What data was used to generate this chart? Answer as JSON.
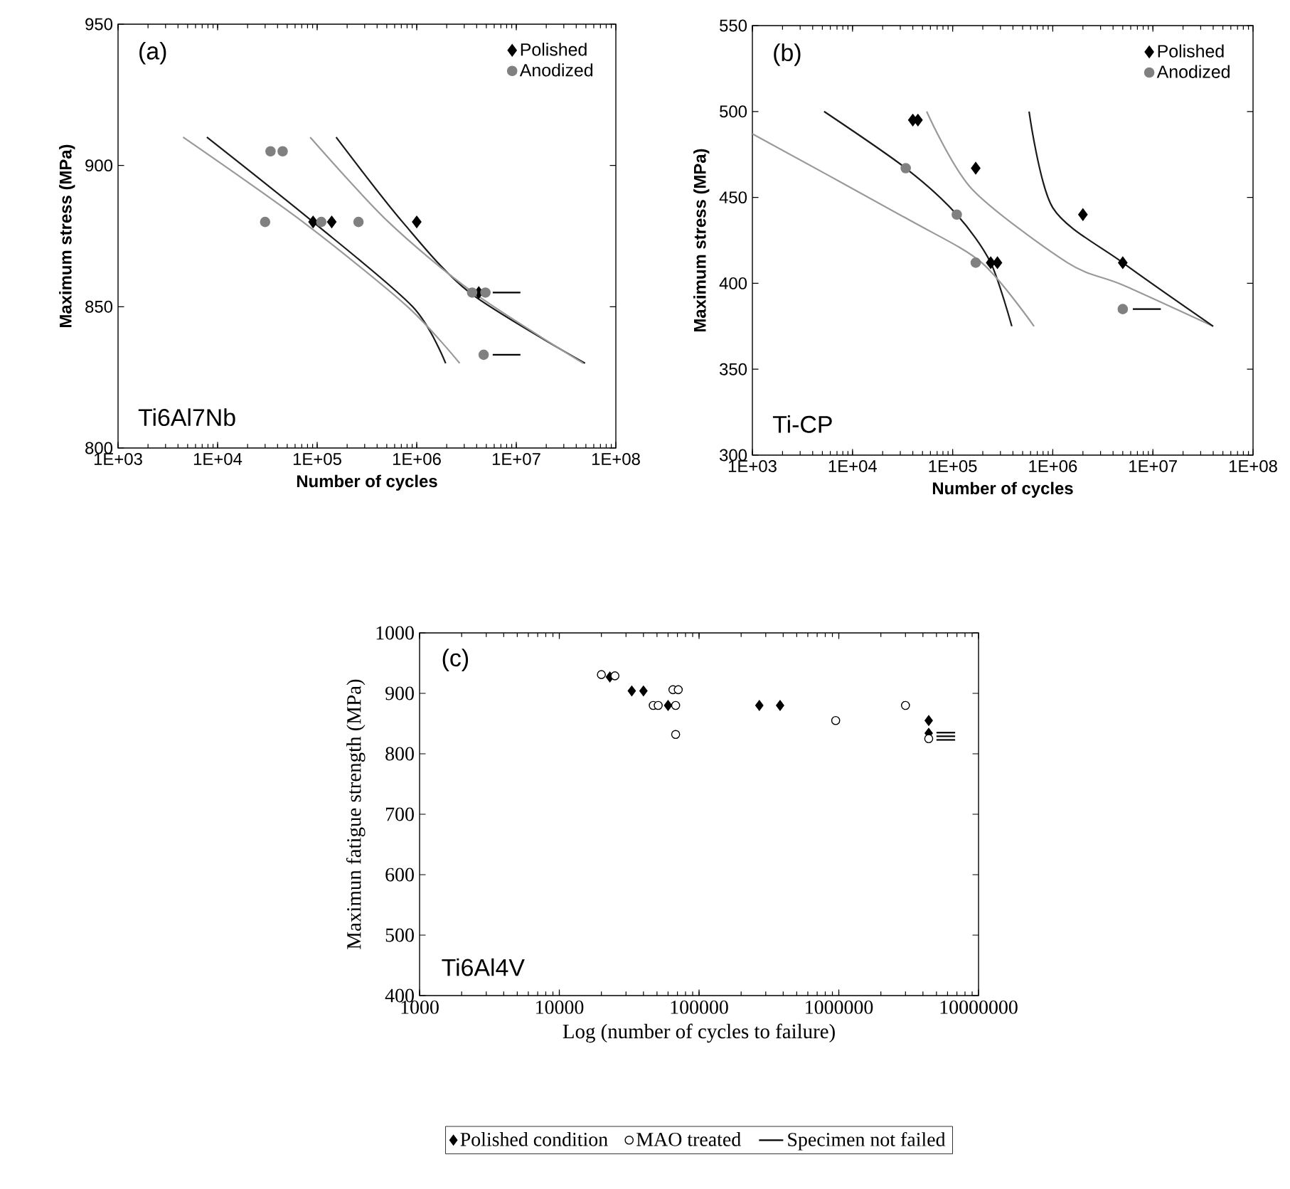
{
  "chart_data": [
    {
      "type": "scatter",
      "xlabel": "Number of cycles",
      "ylabel": "Maximum stress (MPa)",
      "annotations": [
        "(a)",
        "Ti6Al7Nb"
      ],
      "log": "x",
      "legend": "top right",
      "grid": false,
      "xlim": [
        1000,
        100000000
      ],
      "xticks": [
        {
          "value": 1000,
          "label": "1E+03"
        },
        {
          "value": 10000,
          "label": "1E+04"
        },
        {
          "value": 100000,
          "label": "1E+05"
        },
        {
          "value": 1000000,
          "label": "1E+06"
        },
        {
          "value": 10000000,
          "label": "1E+07"
        },
        {
          "value": 100000000,
          "label": "1E+08"
        }
      ],
      "ylim": [
        800,
        950
      ],
      "yticks": [
        800,
        850,
        900,
        950
      ],
      "series": [
        {
          "name": "Polished",
          "marker": "diamond",
          "color": "#000000",
          "x": [
            91000,
            140000,
            1000000,
            4200000
          ],
          "values": [
            880,
            880,
            880,
            855
          ]
        },
        {
          "name": "Anodized",
          "marker": "circle",
          "color": "#808080",
          "x": [
            30000,
            34000,
            45000,
            110000,
            260000,
            3600000,
            4900000,
            4700000
          ],
          "values": [
            880,
            905,
            905,
            880,
            880,
            855,
            855,
            833
          ]
        },
        {
          "type": "line",
          "color": "#000000",
          "x": [
            5800000,
            11000000
          ],
          "values": [
            855,
            855
          ]
        },
        {
          "type": "line",
          "color": "#000000",
          "x": [
            5800000,
            11000000
          ],
          "values": [
            833,
            833
          ]
        },
        {
          "type": "line",
          "color": "#1a1a1a",
          "x": [
            7800,
            91000,
            910000,
            1950000
          ],
          "values": [
            910,
            880,
            850,
            830
          ]
        },
        {
          "type": "line",
          "color": "#999999",
          "x": [
            4500,
            72000,
            810000,
            2700000
          ],
          "values": [
            910,
            880,
            850,
            830
          ]
        },
        {
          "type": "line",
          "color": "#1a1a1a",
          "x": [
            155000,
            720000,
            3400000,
            49000000
          ],
          "values": [
            910,
            880,
            855,
            830
          ]
        },
        {
          "type": "line",
          "color": "#999999",
          "x": [
            85000,
            520000,
            3700000,
            47000000
          ],
          "values": [
            910,
            880,
            855,
            830
          ]
        }
      ]
    },
    {
      "type": "scatter",
      "xlabel": "Number of cycles",
      "ylabel": "Maximum stress (MPa)",
      "annotations": [
        "(b)",
        "Ti-CP"
      ],
      "log": "x",
      "legend": "top right",
      "grid": false,
      "xlim": [
        1000,
        100000000
      ],
      "xticks": [
        {
          "value": 1000,
          "label": "1E+03"
        },
        {
          "value": 10000,
          "label": "1E+04"
        },
        {
          "value": 100000,
          "label": "1E+05"
        },
        {
          "value": 1000000,
          "label": "1E+06"
        },
        {
          "value": 10000000,
          "label": "1E+07"
        },
        {
          "value": 100000000,
          "label": "1E+08"
        }
      ],
      "ylim": [
        300,
        550
      ],
      "yticks": [
        300,
        350,
        400,
        450,
        500,
        550
      ],
      "series": [
        {
          "name": "Polished",
          "marker": "diamond",
          "color": "#000000",
          "x": [
            40000,
            45000,
            170000,
            240000,
            280000,
            2000000,
            5000000
          ],
          "values": [
            495,
            495,
            467,
            412,
            412,
            440,
            412
          ]
        },
        {
          "name": "Anodized",
          "marker": "circle",
          "color": "#808080",
          "x": [
            34000,
            110000,
            170000,
            5000000
          ],
          "values": [
            467,
            440,
            412,
            385
          ]
        },
        {
          "type": "line",
          "color": "#000000",
          "x": [
            6300000,
            12000000
          ],
          "values": [
            385,
            385
          ]
        },
        {
          "type": "line",
          "color": "#1a1a1a",
          "x": [
            5200,
            34000,
            110000,
            240000,
            390000
          ],
          "values": [
            500,
            467,
            440,
            412,
            375
          ]
        },
        {
          "type": "line",
          "color": "#999999",
          "x": [
            1000,
            34000,
            195000,
            650000
          ],
          "values": [
            487,
            438,
            412,
            375
          ]
        },
        {
          "type": "line",
          "color": "#999999",
          "x": [
            55000,
            155000,
            1400000,
            5000000,
            40000000
          ],
          "values": [
            500,
            455,
            412,
            399,
            375
          ]
        },
        {
          "type": "line",
          "color": "#1a1a1a",
          "x": [
            580000,
            1000000,
            5000000,
            40000000
          ],
          "values": [
            500,
            444,
            412,
            375
          ]
        }
      ]
    },
    {
      "type": "scatter",
      "xlabel": "Log (number of cycles to failure)",
      "ylabel": "Maximun fatigue strength (MPa)",
      "annotations": [
        "(c)",
        "Ti6Al4V"
      ],
      "log": "x",
      "legend": "bottom",
      "grid": false,
      "xlim": [
        1000,
        10000000
      ],
      "xticks": [
        1000,
        10000,
        100000,
        1000000,
        10000000
      ],
      "ylim": [
        400,
        1000
      ],
      "yticks": [
        400,
        500,
        600,
        700,
        800,
        900,
        1000
      ],
      "series": [
        {
          "name": "Polished condition",
          "marker": "diamond",
          "color": "#000000",
          "x": [
            23000,
            33000,
            40000,
            60000,
            270000,
            380000,
            4400000,
            4400000
          ],
          "values": [
            927,
            904,
            904,
            880,
            880,
            880,
            855,
            834
          ]
        },
        {
          "name": "MAO treated",
          "marker": "circle",
          "color": "#000000",
          "x": [
            20000,
            25000,
            47000,
            51000,
            65000,
            71000,
            68000,
            68000,
            950000,
            3000000,
            4400000
          ],
          "values": [
            931,
            929,
            880,
            880,
            906,
            906,
            880,
            832,
            855,
            880,
            825
          ]
        },
        {
          "name": "Specimen not failed",
          "type": "line",
          "color": "#000000",
          "x": [
            5000000,
            6800000
          ],
          "values": [
            835,
            835
          ]
        },
        {
          "type": "line",
          "color": "#000000",
          "x": [
            5000000,
            6800000
          ],
          "values": [
            829,
            829
          ]
        },
        {
          "type": "line",
          "color": "#000000",
          "x": [
            5000000,
            6800000
          ],
          "values": [
            823,
            823
          ]
        }
      ]
    }
  ]
}
